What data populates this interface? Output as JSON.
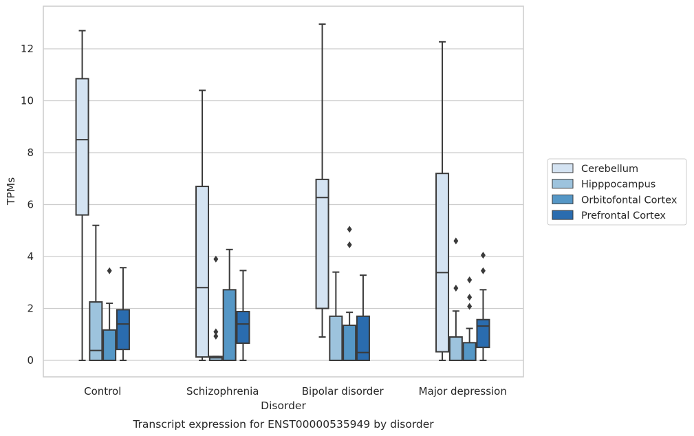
{
  "chart_data": {
    "type": "box",
    "title": "",
    "caption": "Transcript expression for ENST00000535949 by disorder",
    "xlabel": "Disorder",
    "ylabel": "TPMs",
    "ylim": [
      -0.65,
      13.6
    ],
    "yticks": [
      0,
      2,
      4,
      6,
      8,
      10,
      12
    ],
    "grid": "horizontal",
    "legend_position": "right",
    "categories": [
      "Control",
      "Schizophrenia",
      "Bipolar disorder",
      "Major depression"
    ],
    "series": [
      {
        "name": "Cerebellum",
        "color": "#d4e3f2",
        "boxes": [
          {
            "min": 0,
            "q1": 5.6,
            "median": 8.5,
            "q3": 10.85,
            "max": 12.7,
            "outliers": []
          },
          {
            "min": 0,
            "q1": 0.13,
            "median": 2.8,
            "q3": 6.7,
            "max": 10.4,
            "outliers": []
          },
          {
            "min": 0.9,
            "q1": 2.0,
            "median": 6.27,
            "q3": 6.97,
            "max": 12.95,
            "outliers": []
          },
          {
            "min": 0,
            "q1": 0.33,
            "median": 3.38,
            "q3": 7.2,
            "max": 12.27,
            "outliers": []
          }
        ]
      },
      {
        "name": "Hipppocampus",
        "color": "#9dc3dd",
        "boxes": [
          {
            "min": 0,
            "q1": 0,
            "median": 0.38,
            "q3": 2.25,
            "max": 5.2,
            "outliers": []
          },
          {
            "min": 0,
            "q1": 0,
            "median": 0.1,
            "q3": 0.15,
            "max": 0.15,
            "outliers": [
              3.9,
              1.1,
              0.93
            ]
          },
          {
            "min": 0,
            "q1": 0,
            "median": 0,
            "q3": 1.7,
            "max": 3.4,
            "outliers": []
          },
          {
            "min": 0,
            "q1": 0,
            "median": 0,
            "q3": 0.9,
            "max": 1.9,
            "outliers": [
              4.6,
              2.78
            ]
          }
        ]
      },
      {
        "name": "Orbitofontal Cortex",
        "color": "#5597c6",
        "boxes": [
          {
            "min": 0,
            "q1": 0,
            "median": 0,
            "q3": 1.17,
            "max": 2.2,
            "outliers": [
              3.45
            ]
          },
          {
            "min": 0,
            "q1": 0,
            "median": 0,
            "q3": 2.72,
            "max": 4.27,
            "outliers": []
          },
          {
            "min": 0,
            "q1": 0,
            "median": 0,
            "q3": 1.35,
            "max": 1.85,
            "outliers": [
              5.05,
              4.45
            ]
          },
          {
            "min": 0,
            "q1": 0,
            "median": 0,
            "q3": 0.68,
            "max": 1.23,
            "outliers": [
              3.1,
              2.43,
              2.08
            ]
          }
        ]
      },
      {
        "name": "Prefrontal Cortex",
        "color": "#2a6caf",
        "boxes": [
          {
            "min": 0,
            "q1": 0.42,
            "median": 1.4,
            "q3": 1.95,
            "max": 3.57,
            "outliers": []
          },
          {
            "min": 0,
            "q1": 0.66,
            "median": 1.4,
            "q3": 1.88,
            "max": 3.46,
            "outliers": []
          },
          {
            "min": 0,
            "q1": 0,
            "median": 0.3,
            "q3": 1.7,
            "max": 3.28,
            "outliers": []
          },
          {
            "min": 0,
            "q1": 0.5,
            "median": 1.32,
            "q3": 1.57,
            "max": 2.72,
            "outliers": [
              4.05,
              3.45
            ]
          }
        ]
      }
    ]
  }
}
